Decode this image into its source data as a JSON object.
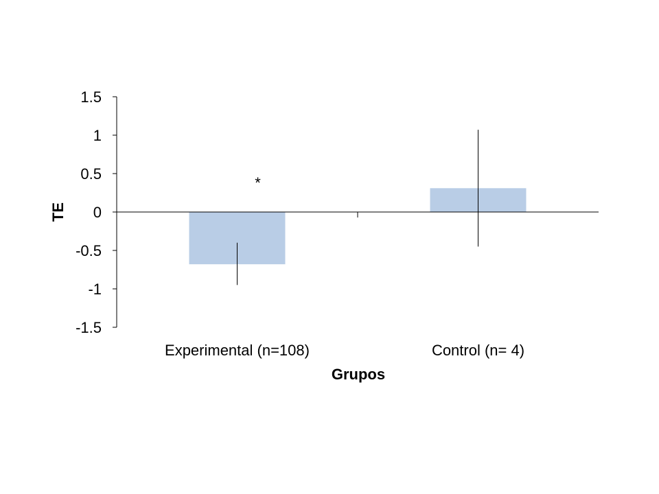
{
  "chart_data": {
    "type": "bar",
    "categories": [
      "Experimental (n=108)",
      "Control (n= 4)"
    ],
    "series": [
      {
        "values": [
          -0.68,
          0.31
        ],
        "error_low": [
          -0.95,
          -0.45
        ],
        "error_high": [
          -0.4,
          1.07
        ]
      }
    ],
    "xlabel": "Grupos",
    "ylabel": "TE",
    "ylim": [
      -1.5,
      1.5
    ],
    "yticks": [
      1.5,
      1,
      0.5,
      0,
      -0.5,
      -1,
      -1.5
    ],
    "ytick_labels": [
      "1.5",
      "1",
      "0.5",
      "0",
      "-0.5",
      "-1",
      "-1.5"
    ],
    "grid": false,
    "legend": "none",
    "annotations": [
      {
        "text": "*",
        "category_index": 0,
        "y": 0.42
      }
    ],
    "colors": {
      "bar": "#b9cde6",
      "axis": "#000000",
      "error_bar": "#000000"
    }
  }
}
